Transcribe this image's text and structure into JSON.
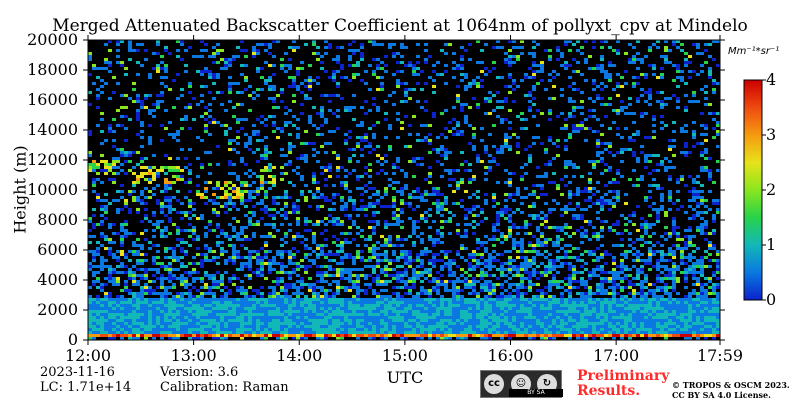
{
  "chart_data": {
    "type": "heatmap",
    "title": "Merged Attenuated Backscatter Coefficient at 1064nm of pollyxt_cpv at Mindelo",
    "xlabel": "UTC",
    "ylabel": "Height (m)",
    "x_ticks": [
      "12:00",
      "13:00",
      "14:00",
      "15:00",
      "16:00",
      "17:00",
      "17:59"
    ],
    "x_range": [
      "12:00",
      "17:59"
    ],
    "y_ticks": [
      0,
      2000,
      4000,
      6000,
      8000,
      10000,
      12000,
      14000,
      16000,
      18000,
      20000
    ],
    "ylim": [
      0,
      20000
    ],
    "colorbar": {
      "unit": "Mm⁻¹*sr⁻¹",
      "ticks": [
        0,
        1,
        2,
        3,
        4
      ],
      "range": [
        0,
        4
      ],
      "colormap": [
        "#0b22cc",
        "#0a78e0",
        "#12b8b8",
        "#28d24a",
        "#8ae61e",
        "#e8e21a",
        "#f59a10",
        "#ee4a10",
        "#cc0000"
      ]
    },
    "features": [
      {
        "type": "boundary_layer_layer",
        "height_range_m": [
          200,
          500
        ],
        "level_range": [
          2.5,
          4
        ]
      },
      {
        "type": "aerosol_layer",
        "height_range_m": [
          500,
          2700
        ],
        "level_range": [
          0.3,
          1.2
        ]
      },
      {
        "type": "cirrus_clouds",
        "time_range": [
          "12:00",
          "13:45"
        ],
        "height_range_m": [
          9200,
          12500
        ],
        "level_range": [
          1.5,
          3
        ]
      }
    ],
    "grid": false
  },
  "meta": {
    "date": "2023-11-16",
    "lc": "LC: 1.71e+14",
    "version": "Version: 3.6",
    "calibration": "Calibration: Raman"
  },
  "license": {
    "badge_label": "BY  SA",
    "badge_icons": [
      "cc-icon",
      "by-person-icon",
      "sa-share-icon"
    ],
    "preliminary_line1": "Preliminary",
    "preliminary_line2": "Results.",
    "copyright_line1": "© TROPOS & OSCM 2023.",
    "copyright_line2": "CC BY SA 4.0 License."
  }
}
